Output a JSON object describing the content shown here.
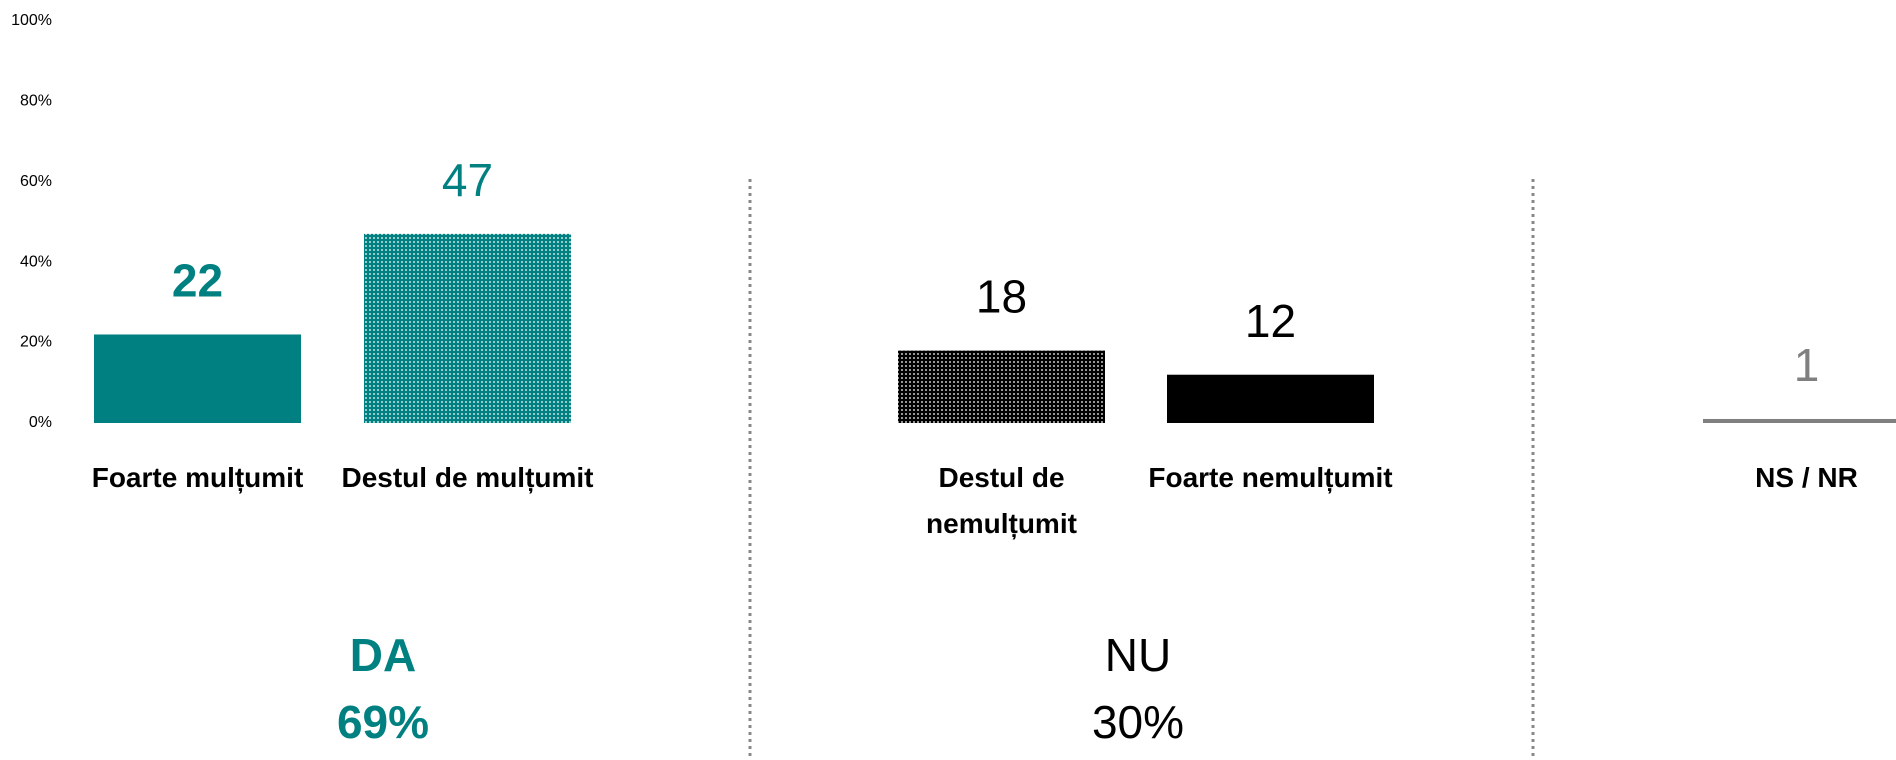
{
  "chart_data": {
    "type": "bar",
    "categories": [
      "Foarte mulțumit",
      "Destul de mulțumit",
      "Destul de nemulțumit",
      "Foarte nemulțumit",
      "NS / NR"
    ],
    "values": [
      22,
      47,
      18,
      12,
      1
    ],
    "colors": [
      "#008080",
      "#008080",
      "#000000",
      "#000000",
      "#808080"
    ],
    "hatched": [
      false,
      true,
      true,
      false,
      false
    ],
    "ylim": [
      0,
      100
    ],
    "yticks": [
      {
        "value": 0,
        "label": "0%"
      },
      {
        "value": 20,
        "label": "20%"
      },
      {
        "value": 40,
        "label": "40%"
      },
      {
        "value": 60,
        "label": "60%"
      },
      {
        "value": 80,
        "label": "80%"
      },
      {
        "value": 100,
        "label": "100%"
      }
    ],
    "groups": {
      "names": [
        "DA",
        "NU"
      ],
      "values": [
        69,
        30
      ],
      "value_labels": [
        "69%",
        "30%"
      ],
      "colors": [
        "#008080",
        "#000000"
      ]
    }
  }
}
